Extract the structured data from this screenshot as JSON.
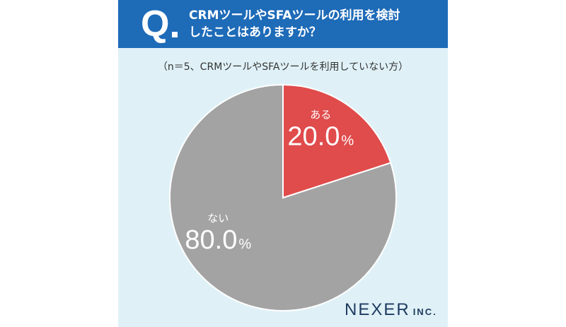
{
  "header": {
    "q_letter": "Q",
    "question_line1": "CRMツールやSFAツールの利用を検討",
    "question_line2": "したことはありますか？"
  },
  "note": "（n＝5、CRMツールやSFAツールを利用していない方）",
  "brand": {
    "name": "NEXER",
    "suffix": "INC."
  },
  "colors": {
    "header": "#1e6bb8",
    "background": "#dff1f7",
    "aru": "#e04b4b",
    "nai": "#a3a3a3"
  },
  "chart_data": {
    "type": "pie",
    "title": "",
    "slices": [
      {
        "label": "ある",
        "value": 20.0,
        "display": "20.0",
        "unit": "%",
        "color": "#e04b4b"
      },
      {
        "label": "ない",
        "value": 80.0,
        "display": "80.0",
        "unit": "%",
        "color": "#a3a3a3"
      }
    ],
    "start_angle_deg": 0,
    "direction": "clockwise"
  }
}
